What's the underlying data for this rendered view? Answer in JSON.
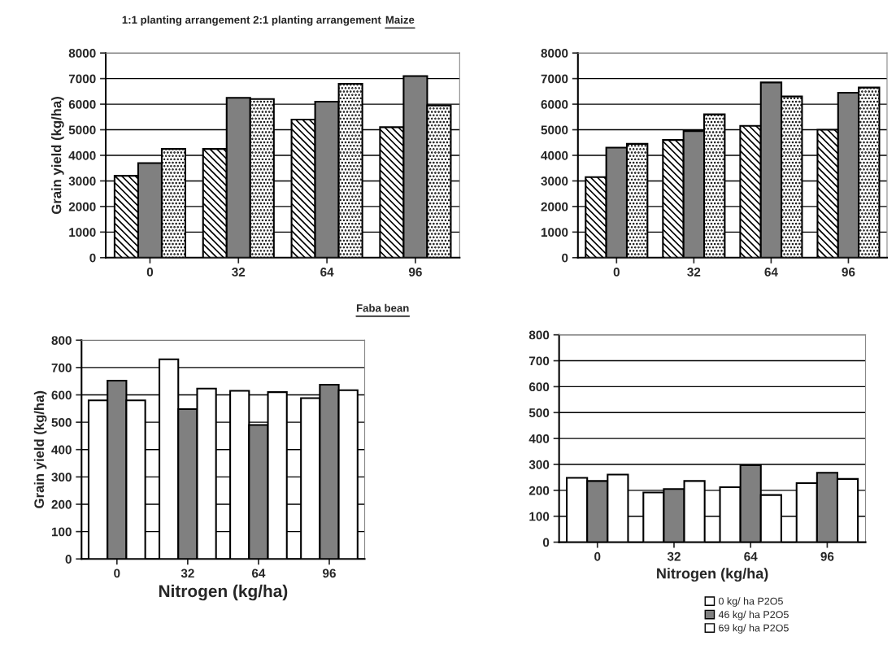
{
  "chart_data": [
    {
      "type": "bar",
      "title": "1:1 planting arrangement 2:1 planting arrangement",
      "subtitle": "Maize",
      "ylabel": "Grain yield (kg/ha)",
      "categories": [
        "0",
        "32",
        "64",
        "96"
      ],
      "ylim": [
        0,
        8000
      ],
      "yticks": [
        0,
        1000,
        2000,
        3000,
        4000,
        5000,
        6000,
        7000,
        8000
      ],
      "grid": "y",
      "series": [
        {
          "color": "#000000",
          "values": [
            3200,
            4250,
            5400,
            5100
          ]
        },
        {
          "color": "#808080",
          "values": [
            3700,
            6250,
            6100,
            7100
          ]
        },
        {
          "color": "#000000",
          "values": [
            4250,
            6200,
            6800,
            5950
          ]
        }
      ]
    },
    {
      "type": "bar",
      "categories": [
        "0",
        "32",
        "64",
        "96"
      ],
      "ylim": [
        0,
        8000
      ],
      "yticks": [
        0,
        1000,
        2000,
        3000,
        4000,
        5000,
        6000,
        7000,
        8000
      ],
      "grid": "y",
      "series": [
        {
          "color": "#000000",
          "values": [
            3150,
            4600,
            5150,
            5000
          ]
        },
        {
          "color": "#808080",
          "values": [
            4300,
            4950,
            6850,
            6450
          ]
        },
        {
          "color": "#000000",
          "values": [
            4450,
            5600,
            6300,
            6650
          ]
        }
      ]
    },
    {
      "type": "bar",
      "annotations": [
        "Faba bean"
      ],
      "ylabel": "Grain yield (kg/ha)",
      "xlabel": "Nitrogen (kg/ha)",
      "categories": [
        "0",
        "32",
        "64",
        "96"
      ],
      "ylim": [
        0,
        800
      ],
      "yticks": [
        0,
        100,
        200,
        300,
        400,
        500,
        600,
        700,
        800
      ],
      "grid": "y",
      "series": [
        {
          "color": "#ffffff",
          "values": [
            580,
            730,
            615,
            588
          ]
        },
        {
          "color": "#808080",
          "values": [
            652,
            548,
            490,
            637
          ]
        },
        {
          "color": "#ffffff",
          "values": [
            580,
            623,
            610,
            617
          ]
        }
      ]
    },
    {
      "type": "bar",
      "xlabel": "Nitrogen (kg/ha)",
      "categories": [
        "0",
        "32",
        "64",
        "96"
      ],
      "ylim": [
        0,
        800
      ],
      "yticks": [
        0,
        100,
        200,
        300,
        400,
        500,
        600,
        700,
        800
      ],
      "grid": "y",
      "legend": "bottom right",
      "series": [
        {
          "name": "0 kg/ ha P2O5",
          "color": "#ffffff",
          "values": [
            248,
            192,
            212,
            228
          ]
        },
        {
          "name": "46 kg/ ha P2O5",
          "color": "#808080",
          "values": [
            236,
            205,
            297,
            268
          ]
        },
        {
          "name": "69 kg/ ha P2O5",
          "color": "#ffffff",
          "values": [
            261,
            236,
            182,
            244
          ]
        }
      ]
    }
  ]
}
